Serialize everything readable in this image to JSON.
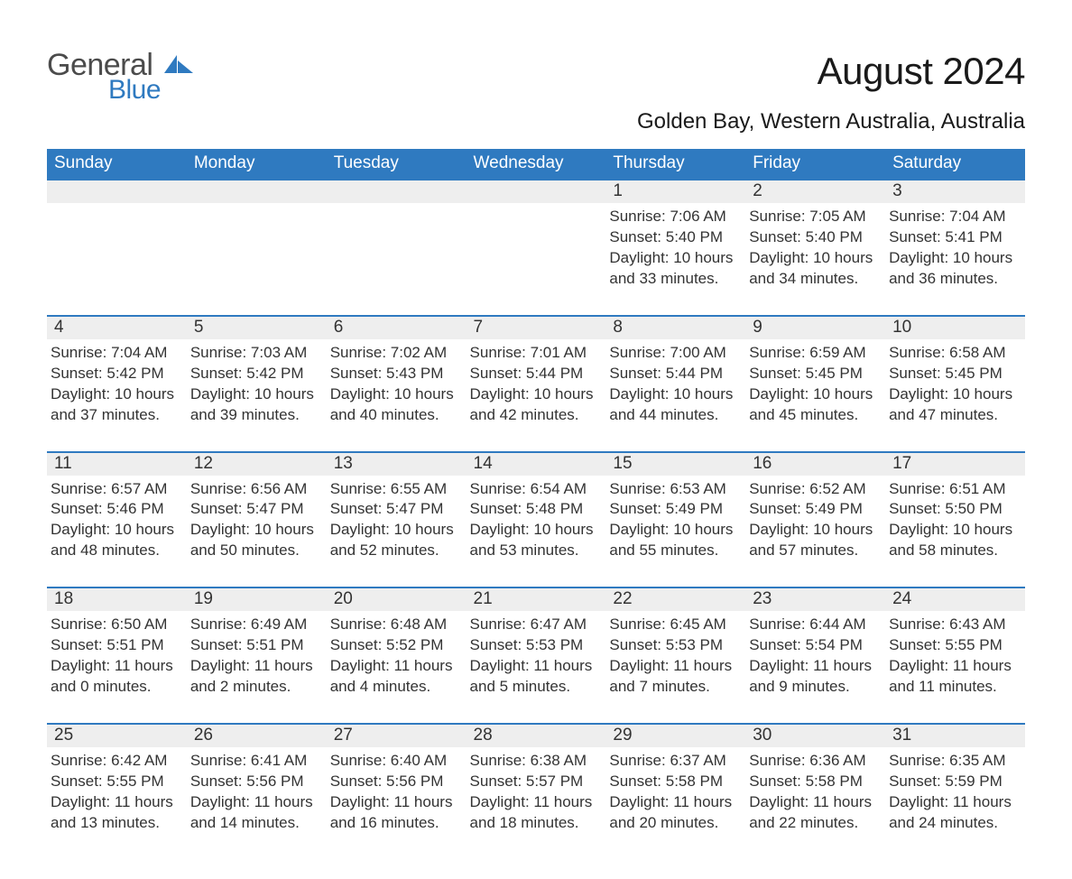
{
  "logo": {
    "word1": "General",
    "word2": "Blue",
    "word1_color": "#4b4b4b",
    "word2_color": "#2f7ac0"
  },
  "title": "August 2024",
  "location": "Golden Bay, Western Australia, Australia",
  "colors": {
    "header_bg": "#2f7ac0",
    "header_text": "#ffffff",
    "daynum_bg": "#eeeeee",
    "row_border": "#2f7ac0",
    "body_text": "#333333",
    "background": "#ffffff"
  },
  "typography": {
    "title_fontsize": 42,
    "location_fontsize": 24,
    "header_fontsize": 19,
    "daynum_fontsize": 19,
    "detail_fontsize": 17
  },
  "columns": [
    "Sunday",
    "Monday",
    "Tuesday",
    "Wednesday",
    "Thursday",
    "Friday",
    "Saturday"
  ],
  "labels": {
    "sunrise": "Sunrise:",
    "sunset": "Sunset:",
    "daylight": "Daylight:",
    "hours": "hours",
    "and": "and",
    "minutes": "minutes."
  },
  "weeks": [
    [
      null,
      null,
      null,
      null,
      {
        "n": "1",
        "rise": "7:06 AM",
        "set": "5:40 PM",
        "dh": "10",
        "dm": "33"
      },
      {
        "n": "2",
        "rise": "7:05 AM",
        "set": "5:40 PM",
        "dh": "10",
        "dm": "34"
      },
      {
        "n": "3",
        "rise": "7:04 AM",
        "set": "5:41 PM",
        "dh": "10",
        "dm": "36"
      }
    ],
    [
      {
        "n": "4",
        "rise": "7:04 AM",
        "set": "5:42 PM",
        "dh": "10",
        "dm": "37"
      },
      {
        "n": "5",
        "rise": "7:03 AM",
        "set": "5:42 PM",
        "dh": "10",
        "dm": "39"
      },
      {
        "n": "6",
        "rise": "7:02 AM",
        "set": "5:43 PM",
        "dh": "10",
        "dm": "40"
      },
      {
        "n": "7",
        "rise": "7:01 AM",
        "set": "5:44 PM",
        "dh": "10",
        "dm": "42"
      },
      {
        "n": "8",
        "rise": "7:00 AM",
        "set": "5:44 PM",
        "dh": "10",
        "dm": "44"
      },
      {
        "n": "9",
        "rise": "6:59 AM",
        "set": "5:45 PM",
        "dh": "10",
        "dm": "45"
      },
      {
        "n": "10",
        "rise": "6:58 AM",
        "set": "5:45 PM",
        "dh": "10",
        "dm": "47"
      }
    ],
    [
      {
        "n": "11",
        "rise": "6:57 AM",
        "set": "5:46 PM",
        "dh": "10",
        "dm": "48"
      },
      {
        "n": "12",
        "rise": "6:56 AM",
        "set": "5:47 PM",
        "dh": "10",
        "dm": "50"
      },
      {
        "n": "13",
        "rise": "6:55 AM",
        "set": "5:47 PM",
        "dh": "10",
        "dm": "52"
      },
      {
        "n": "14",
        "rise": "6:54 AM",
        "set": "5:48 PM",
        "dh": "10",
        "dm": "53"
      },
      {
        "n": "15",
        "rise": "6:53 AM",
        "set": "5:49 PM",
        "dh": "10",
        "dm": "55"
      },
      {
        "n": "16",
        "rise": "6:52 AM",
        "set": "5:49 PM",
        "dh": "10",
        "dm": "57"
      },
      {
        "n": "17",
        "rise": "6:51 AM",
        "set": "5:50 PM",
        "dh": "10",
        "dm": "58"
      }
    ],
    [
      {
        "n": "18",
        "rise": "6:50 AM",
        "set": "5:51 PM",
        "dh": "11",
        "dm": "0"
      },
      {
        "n": "19",
        "rise": "6:49 AM",
        "set": "5:51 PM",
        "dh": "11",
        "dm": "2"
      },
      {
        "n": "20",
        "rise": "6:48 AM",
        "set": "5:52 PM",
        "dh": "11",
        "dm": "4"
      },
      {
        "n": "21",
        "rise": "6:47 AM",
        "set": "5:53 PM",
        "dh": "11",
        "dm": "5"
      },
      {
        "n": "22",
        "rise": "6:45 AM",
        "set": "5:53 PM",
        "dh": "11",
        "dm": "7"
      },
      {
        "n": "23",
        "rise": "6:44 AM",
        "set": "5:54 PM",
        "dh": "11",
        "dm": "9"
      },
      {
        "n": "24",
        "rise": "6:43 AM",
        "set": "5:55 PM",
        "dh": "11",
        "dm": "11"
      }
    ],
    [
      {
        "n": "25",
        "rise": "6:42 AM",
        "set": "5:55 PM",
        "dh": "11",
        "dm": "13"
      },
      {
        "n": "26",
        "rise": "6:41 AM",
        "set": "5:56 PM",
        "dh": "11",
        "dm": "14"
      },
      {
        "n": "27",
        "rise": "6:40 AM",
        "set": "5:56 PM",
        "dh": "11",
        "dm": "16"
      },
      {
        "n": "28",
        "rise": "6:38 AM",
        "set": "5:57 PM",
        "dh": "11",
        "dm": "18"
      },
      {
        "n": "29",
        "rise": "6:37 AM",
        "set": "5:58 PM",
        "dh": "11",
        "dm": "20"
      },
      {
        "n": "30",
        "rise": "6:36 AM",
        "set": "5:58 PM",
        "dh": "11",
        "dm": "22"
      },
      {
        "n": "31",
        "rise": "6:35 AM",
        "set": "5:59 PM",
        "dh": "11",
        "dm": "24"
      }
    ]
  ]
}
